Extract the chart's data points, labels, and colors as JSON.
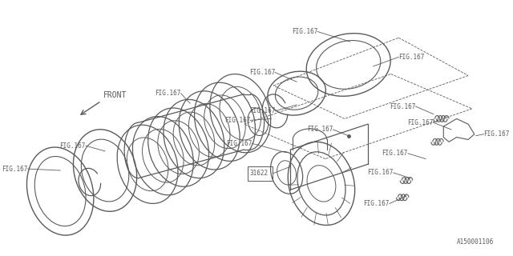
{
  "bg_color": "#ffffff",
  "line_color": "#5a5a5a",
  "fig_label": "FIG.167",
  "part_number": "31622",
  "drawing_number": "A150001106",
  "front_label": "FRONT",
  "figsize": [
    6.4,
    3.2
  ],
  "dpi": 100,
  "label_fontsize": 6.0,
  "mono_font": "DejaVu Sans Mono"
}
